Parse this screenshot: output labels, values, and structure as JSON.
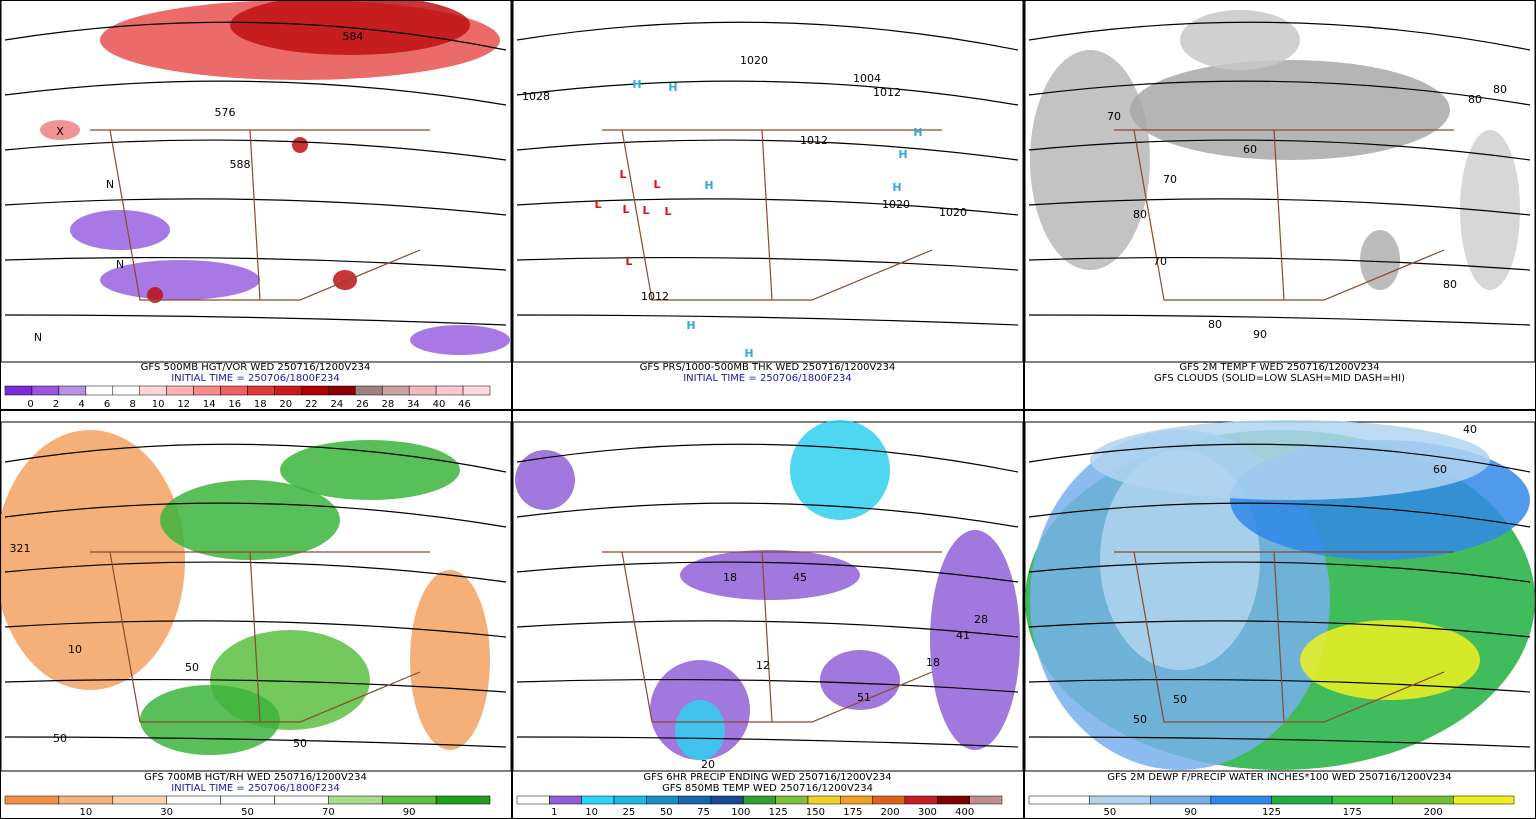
{
  "panels": [
    {
      "captions": [
        "GFS 500MB HGT/VOR WED 250716/1200V234",
        "INITIAL TIME = 250706/1800F234"
      ],
      "caption_colors": [
        "#000000",
        "#1a1aaa"
      ],
      "colorbar": {
        "colors": [
          "#7a2ad8",
          "#9a55e2",
          "#b790ea",
          "#ffffff",
          "#ffffff",
          "#ffd6d6",
          "#ffb0b0",
          "#f88a8a",
          "#f06060",
          "#e03a3a",
          "#cc1a1a",
          "#b00000",
          "#8c0000",
          "#a08080",
          "#c8a0a0",
          "#f0b8c0",
          "#ffc8d0",
          "#ffd8e0"
        ],
        "labels": [
          "0",
          "2",
          "4",
          "6",
          "8",
          "10",
          "12",
          "14",
          "16",
          "18",
          "20",
          "22",
          "24",
          "26",
          "28",
          "34",
          "40",
          "46"
        ]
      },
      "map_labels": [
        "584",
        "576",
        "588",
        "X",
        "N",
        "N",
        "N"
      ]
    },
    {
      "captions": [
        "GFS PRS/1000-500MB THK WED 250716/1200V234",
        "INITIAL TIME = 250706/1800F234"
      ],
      "caption_colors": [
        "#000000",
        "#1a1aaa"
      ],
      "map_labels": [
        "H",
        "H",
        "H",
        "H",
        "H",
        "H",
        "H",
        "H",
        "L",
        "L",
        "L",
        "L",
        "L",
        "L",
        "L",
        "1020",
        "1028",
        "1004",
        "1012",
        "1012",
        "1020",
        "1020",
        "1012"
      ]
    },
    {
      "captions": [
        "GFS 2M TEMP F WED 250716/1200V234",
        "GFS CLOUDS (SOLID=LOW SLASH=MID DASH=HI)"
      ],
      "caption_colors": [
        "#000000",
        "#000000"
      ],
      "map_labels": [
        "70",
        "80",
        "70",
        "60",
        "80",
        "70",
        "80",
        "90",
        "80",
        "80"
      ]
    },
    {
      "captions": [
        "GFS 700MB HGT/RH WED 250716/1200V234",
        "INITIAL TIME = 250706/1800F234"
      ],
      "caption_colors": [
        "#000000",
        "#1a1aaa"
      ],
      "colorbar": {
        "colors": [
          "#f0904a",
          "#f6b27a",
          "#fbd2aa",
          "#ffffff",
          "#ffffff",
          "#ffffff",
          "#a6dc8c",
          "#5cc040",
          "#1e9e1e"
        ],
        "labels": [
          "10",
          "30",
          "50",
          "70",
          "90"
        ]
      },
      "map_labels": [
        "321",
        "10",
        "50",
        "50",
        "50"
      ]
    },
    {
      "captions": [
        "GFS 6HR PRECIP ENDING WED 250716/1200V234",
        "GFS 850MB TEMP WED 250716/1200V234"
      ],
      "caption_colors": [
        "#000000",
        "#000000"
      ],
      "colorbar": {
        "colors": [
          "#ffffff",
          "#9060d8",
          "#28d8f0",
          "#20b8e0",
          "#1890c8",
          "#1868b0",
          "#184890",
          "#30a030",
          "#80c040",
          "#f0d020",
          "#f0a020",
          "#e06020",
          "#c02020",
          "#800000",
          "#c09090"
        ],
        "labels": [
          "1",
          "10",
          "25",
          "50",
          "75",
          "100",
          "125",
          "150",
          "175",
          "200",
          "300",
          "400"
        ]
      },
      "map_labels": [
        "18",
        "45",
        "12",
        "51",
        "41",
        "28",
        "18",
        "20"
      ]
    },
    {
      "captions": [
        "GFS 2M DEWP F/PRECIP WATER INCHES*100 WED 250716/1200V234"
      ],
      "caption_colors": [
        "#000000"
      ],
      "colorbar": {
        "colors": [
          "#ffffff",
          "#b0d4f0",
          "#78b0ec",
          "#3088e8",
          "#20b040",
          "#40c040",
          "#70c030",
          "#f0f020"
        ],
        "labels": [
          "50",
          "90",
          "125",
          "175",
          "200"
        ]
      },
      "map_labels": [
        "50",
        "50",
        "60",
        "40"
      ]
    }
  ]
}
